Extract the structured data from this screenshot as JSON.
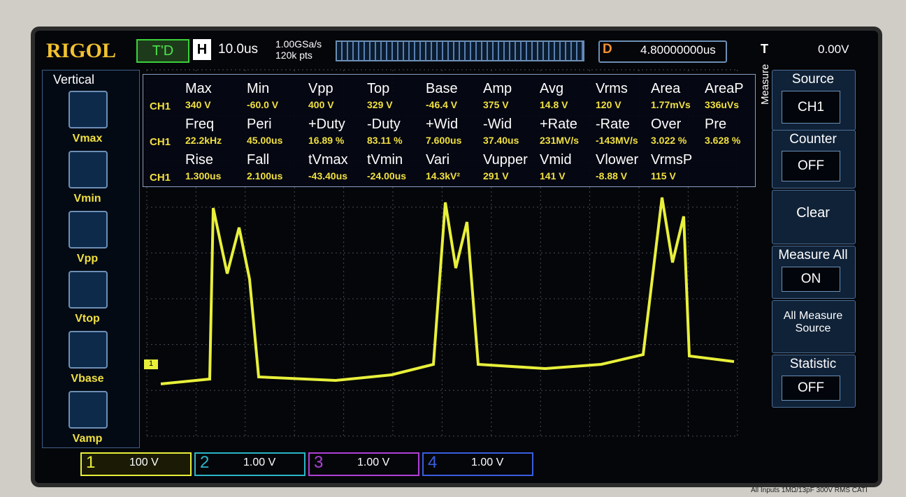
{
  "header": {
    "brand": "RIGOL",
    "trigger_status": "T'D",
    "timebase_label": "H",
    "timebase": "10.0us",
    "sample_rate": "1.00GSa/s",
    "memory_depth": "120k pts",
    "delay_label": "D",
    "delay": "4.80000000us",
    "trigger_label": "T",
    "trigger_level": "0.00V"
  },
  "left_panel": {
    "title": "Vertical",
    "buttons": [
      "Vmax",
      "Vmin",
      "Vpp",
      "Vtop",
      "Vbase",
      "Vamp"
    ]
  },
  "measurements": {
    "groups": [
      {
        "headers": [
          "Max",
          "Min",
          "Vpp",
          "Top",
          "Base",
          "Amp",
          "Avg",
          "Vrms",
          "Area",
          "AreaP"
        ],
        "channel": "CH1",
        "values": [
          "340 V",
          "-60.0 V",
          "400 V",
          "329 V",
          "-46.4 V",
          "375 V",
          "14.8 V",
          "120 V",
          "1.77mVs",
          "336uVs"
        ]
      },
      {
        "headers": [
          "Freq",
          "Peri",
          "+Duty",
          "-Duty",
          "+Wid",
          "-Wid",
          "+Rate",
          "-Rate",
          "Over",
          "Pre"
        ],
        "channel": "CH1",
        "values": [
          "22.2kHz",
          "45.00us",
          "16.89 %",
          "83.11 %",
          "7.600us",
          "37.40us",
          "231MV/s",
          "-143MV/s",
          "3.022 %",
          "3.628 %"
        ]
      },
      {
        "headers": [
          "Rise",
          "Fall",
          "tVmax",
          "tVmin",
          "Vari",
          "Vupper",
          "Vmid",
          "Vlower",
          "VrmsP"
        ],
        "channel": "CH1",
        "values": [
          "1.300us",
          "2.100us",
          "-43.40us",
          "-24.00us",
          "14.3kV²",
          "291 V",
          "141 V",
          "-8.88 V",
          "115 V"
        ]
      }
    ]
  },
  "menu": {
    "title": "Measure",
    "items": [
      {
        "label": "Source",
        "value": "CH1"
      },
      {
        "label": "Counter",
        "value": "OFF"
      },
      {
        "label": "Clear"
      },
      {
        "label": "Measure All",
        "value": "ON"
      },
      {
        "label": "All Measure Source"
      },
      {
        "label": "Statistic",
        "value": "OFF"
      }
    ]
  },
  "channels": [
    {
      "number": "1",
      "scale": "100 V"
    },
    {
      "number": "2",
      "scale": "1.00 V"
    },
    {
      "number": "3",
      "scale": "1.00 V"
    },
    {
      "number": "4",
      "scale": "1.00 V"
    }
  ],
  "footer": "All Inputs 1MΩ/13pF 300V RMS CATI"
}
